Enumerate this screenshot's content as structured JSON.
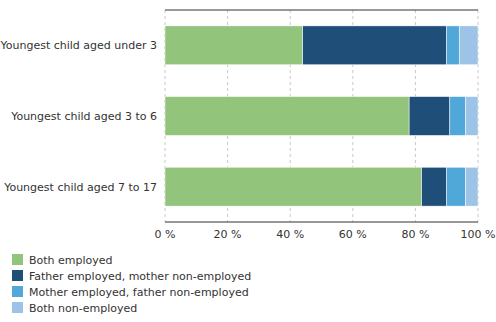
{
  "chart_data": {
    "type": "bar",
    "orientation": "horizontal",
    "stacked": true,
    "categories": [
      "Youngest child aged under 3",
      "Youngest child aged 3 to 6",
      "Youngest child aged 7 to 17"
    ],
    "series": [
      {
        "name": "Both employed",
        "color": "#92C47C",
        "values": [
          44,
          78,
          82
        ]
      },
      {
        "name": "Father employed, mother non-employed",
        "color": "#1F4E79",
        "values": [
          46,
          13,
          8
        ]
      },
      {
        "name": "Mother employed, father non-employed",
        "color": "#4FA8D8",
        "values": [
          4,
          5,
          6
        ]
      },
      {
        "name": "Both non-employed",
        "color": "#9DC3E6",
        "values": [
          6,
          4,
          4
        ]
      }
    ],
    "xlim": [
      0,
      100
    ],
    "xticks": [
      {
        "value": 0,
        "label": "0 %"
      },
      {
        "value": 20,
        "label": "20 %"
      },
      {
        "value": 40,
        "label": "40 %"
      },
      {
        "value": 60,
        "label": "60 %"
      },
      {
        "value": 80,
        "label": "80 %"
      },
      {
        "value": 100,
        "label": "100 %"
      }
    ],
    "grid": true,
    "legend": "bottom"
  }
}
